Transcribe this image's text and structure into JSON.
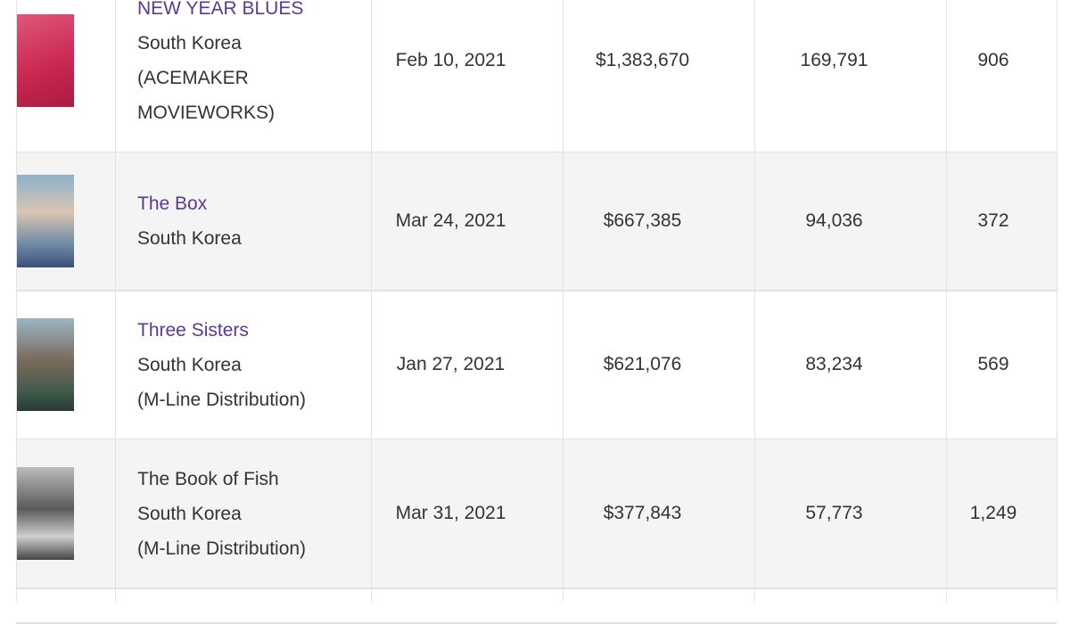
{
  "table": {
    "rows": [
      {
        "title": "NEW YEAR BLUES",
        "link": true,
        "country": "South Korea",
        "distributor": "(ACEMAKER MOVIEWORKS)",
        "release_date": "Feb 10, 2021",
        "gross": "$1,383,670",
        "admissions": "169,791",
        "screens": "906"
      },
      {
        "title": "The Box",
        "link": true,
        "country": "South Korea",
        "release_date": "Mar 24, 2021",
        "gross": "$667,385",
        "admissions": "94,036",
        "screens": "372"
      },
      {
        "title": "Three Sisters",
        "link": true,
        "country": "South Korea",
        "distributor": "(M-Line Distribution)",
        "release_date": "Jan 27, 2021",
        "gross": "$621,076",
        "admissions": "83,234",
        "screens": "569"
      },
      {
        "title": "The Book of Fish",
        "link": false,
        "country": "South Korea",
        "distributor": "(M-Line Distribution)",
        "release_date": "Mar 31, 2021",
        "gross": "$377,843",
        "admissions": "57,773",
        "screens": "1,249"
      }
    ]
  }
}
